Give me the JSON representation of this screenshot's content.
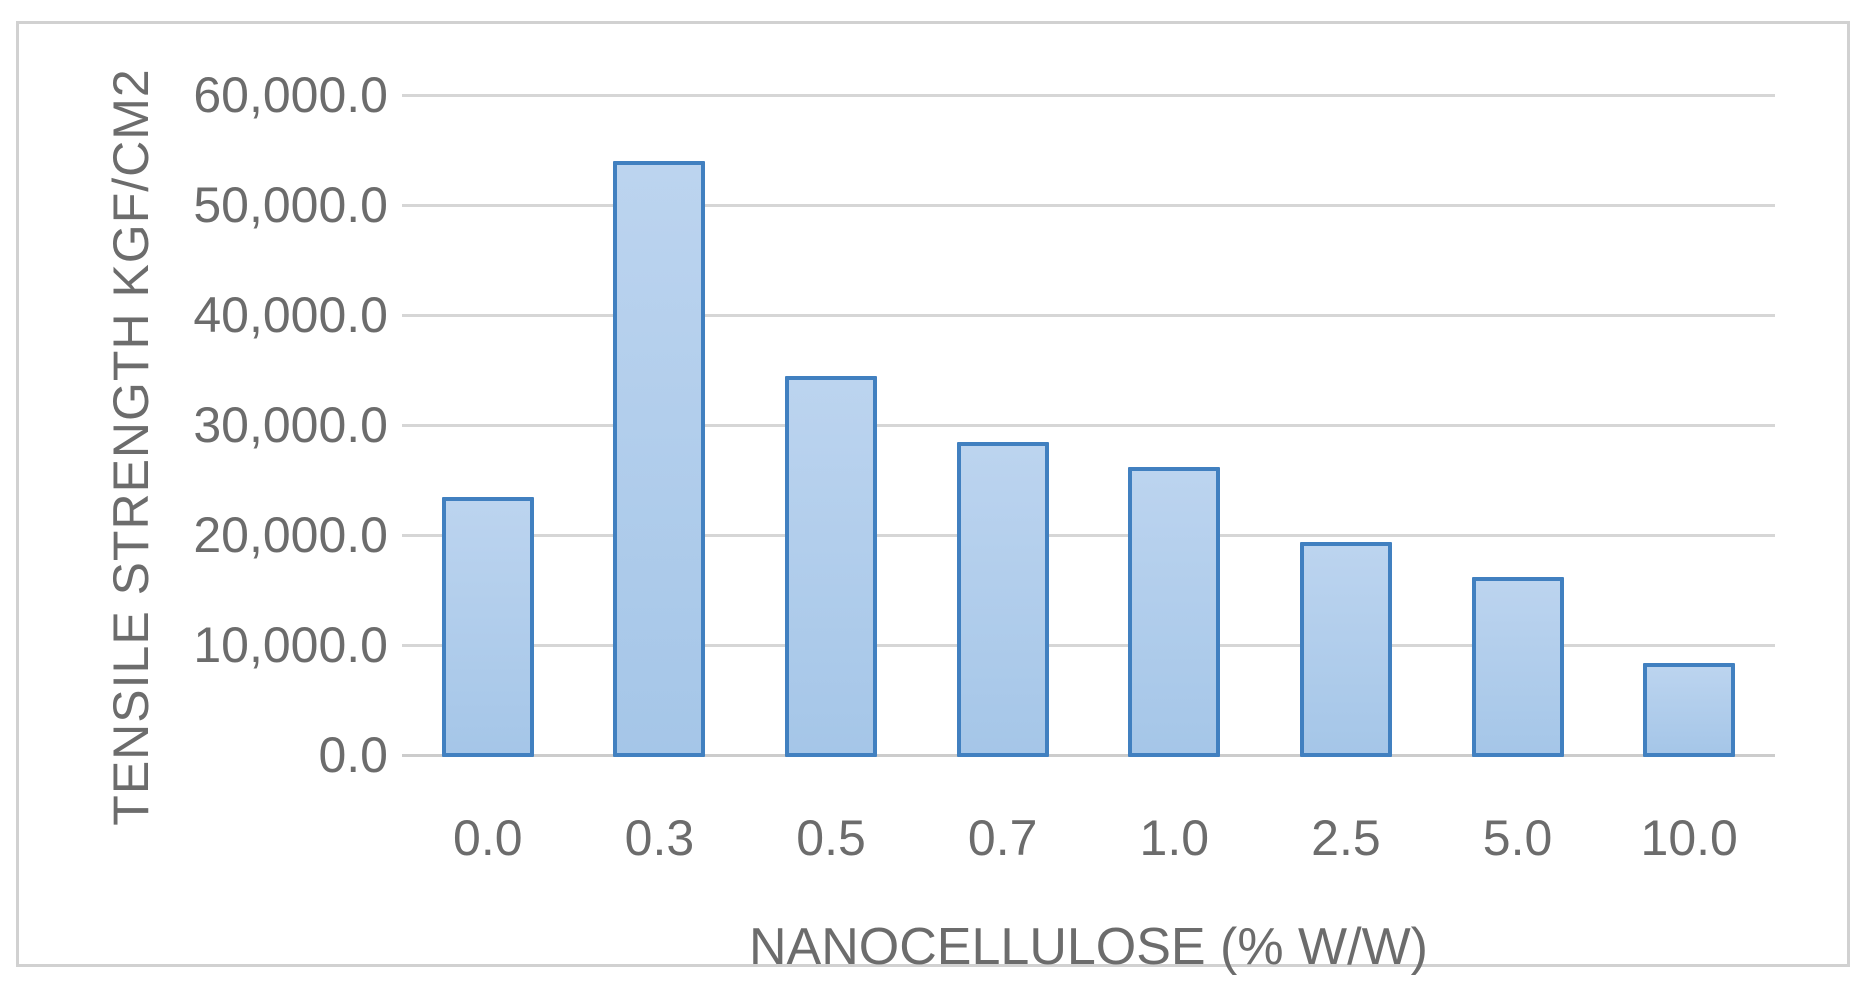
{
  "chart_data": {
    "type": "bar",
    "categories": [
      "0.0",
      "0.3",
      "0.5",
      "0.7",
      "1.0",
      "2.5",
      "5.0",
      "10.0"
    ],
    "values": [
      23500,
      54000,
      34500,
      28500,
      26200,
      19400,
      16200,
      8400
    ],
    "xlabel": "NANOCELLULOSE (% W/W)",
    "ylabel": "TENSILE STRENGTH KGF/CM2",
    "ylim": [
      0,
      60000
    ],
    "ytick_values": [
      0,
      10000,
      20000,
      30000,
      40000,
      50000,
      60000
    ],
    "ytick_labels": [
      "0.0",
      "10,000.0",
      "20,000.0",
      "30,000.0",
      "40,000.0",
      "50,000.0",
      "60,000.0"
    ],
    "grid": true,
    "legend": false,
    "colors": {
      "bar_fill_top": "#bcd4ef",
      "bar_fill_bottom": "#a5c6e8",
      "bar_border": "#4180c0",
      "gridline": "#d6d6d6",
      "baseline": "#cccccc",
      "axis_text": "#6c6c6c",
      "frame_border": "#d1d1d1",
      "background": "#ffffff"
    }
  }
}
